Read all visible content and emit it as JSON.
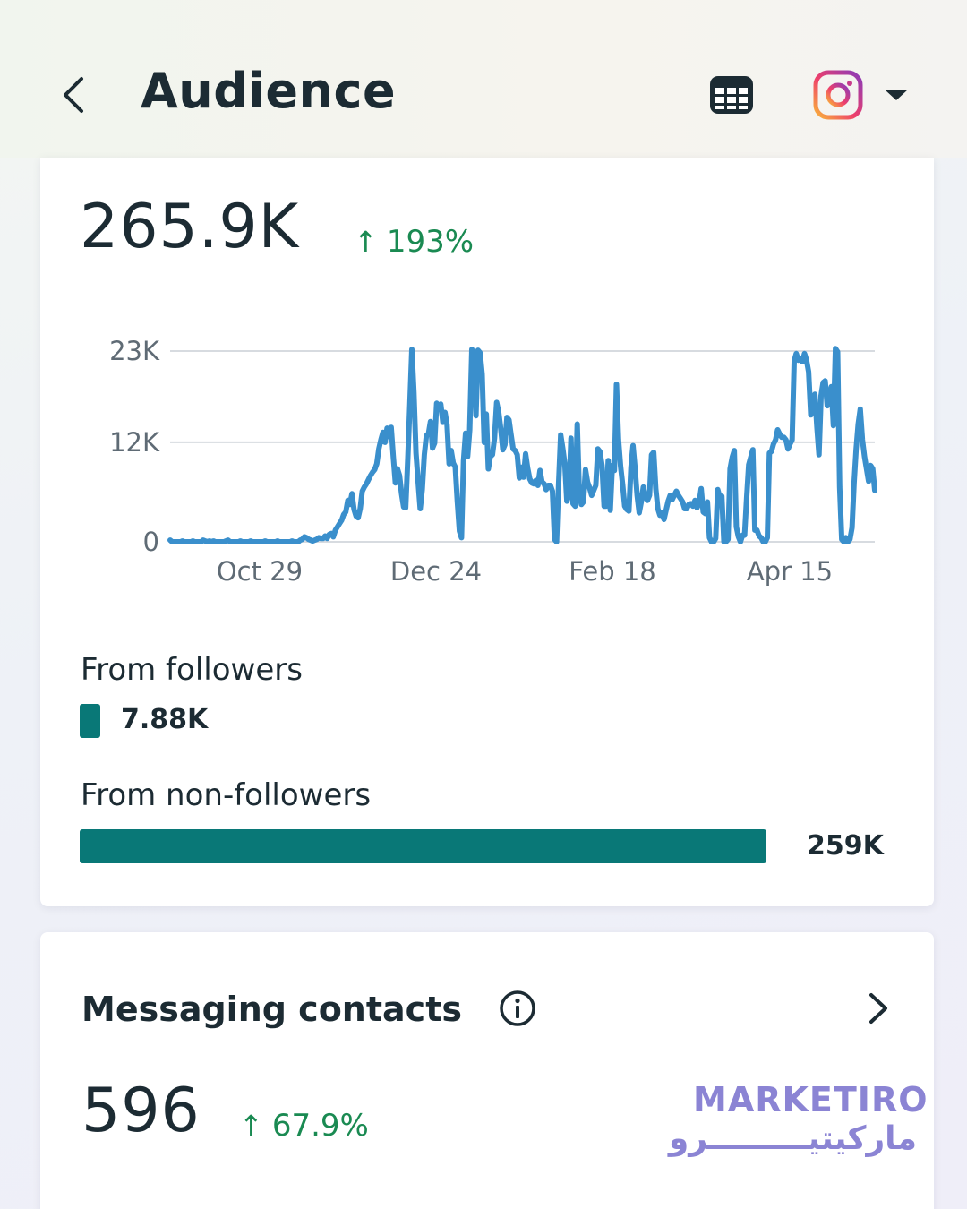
{
  "header": {
    "title": "Audience",
    "back_icon": "chevron-left-icon",
    "table_icon": "table-icon",
    "account_icon": "instagram-icon",
    "dropdown_icon": "caret-down-icon"
  },
  "reach": {
    "value": "265.9K",
    "delta_arrow": "↑",
    "delta": "193%",
    "chart_data": {
      "type": "line",
      "x_tick_labels": [
        "Oct 29",
        "Dec 24",
        "Feb 18",
        "Apr 15"
      ],
      "y_tick_labels": [
        "0",
        "12K",
        "23K"
      ],
      "y_ticks": [
        0,
        12000,
        23000
      ],
      "ylim": [
        0,
        23000
      ],
      "grid": true,
      "color": "#3a8fcc",
      "series": [
        {
          "values": [
            200,
            0,
            0,
            0,
            0,
            0,
            100,
            0,
            0,
            0,
            0,
            100,
            0,
            0,
            0,
            0,
            200,
            100,
            0,
            100,
            0,
            100,
            0,
            0,
            0,
            0,
            0,
            100,
            200,
            0,
            0,
            0,
            0,
            0,
            100,
            0,
            0,
            0,
            0,
            100,
            0,
            0,
            0,
            0,
            0,
            0,
            100,
            0,
            0,
            0,
            0,
            0,
            100,
            0,
            0,
            0,
            0,
            0,
            0,
            100,
            0,
            0,
            0,
            200,
            300,
            600,
            500,
            300,
            200,
            100,
            200,
            300,
            500,
            400,
            400,
            700,
            400,
            900,
            1000,
            600,
            1400,
            1800,
            2200,
            2600,
            3300,
            3600,
            5000,
            4500,
            5800,
            3900,
            3100,
            2900,
            4000,
            6100,
            6600,
            7000,
            7500,
            8000,
            8400,
            8700,
            9400,
            11200,
            12300,
            13200,
            12000,
            13700,
            12700,
            13800,
            10200,
            7100,
            8800,
            8000,
            5800,
            4200,
            4100,
            9900,
            16400,
            23200,
            18000,
            10700,
            7200,
            4000,
            6300,
            10500,
            12800,
            13000,
            14500,
            11300,
            11900,
            16700,
            16300,
            16600,
            14400,
            15600,
            14100,
            9400,
            11000,
            9500,
            9000,
            4800,
            1300,
            500,
            9800,
            13100,
            10300,
            13500,
            23200,
            22500,
            15200,
            23100,
            22800,
            20200,
            12000,
            15400,
            8800,
            10300,
            10500,
            12500,
            16800,
            15600,
            13600,
            11100,
            11700,
            15000,
            14700,
            12900,
            11200,
            11000,
            10500,
            7700,
            9000,
            7800,
            10600,
            8900,
            7600,
            7100,
            7000,
            7400,
            6800,
            8600,
            7200,
            7000,
            6300,
            6800,
            6800,
            6100,
            300,
            0,
            7000,
            12900,
            11300,
            9400,
            4900,
            5700,
            12500,
            4600,
            4300,
            14200,
            5900,
            4500,
            4800,
            8700,
            7200,
            6500,
            5600,
            6200,
            6800,
            11200,
            10900,
            9200,
            4300,
            4300,
            9800,
            3800,
            9200,
            8600,
            19000,
            12300,
            9100,
            6900,
            4300,
            3900,
            3700,
            9000,
            11600,
            8800,
            5600,
            3500,
            4800,
            6600,
            5400,
            5000,
            5600,
            10500,
            10800,
            6400,
            4000,
            3200,
            3500,
            2700,
            3800,
            4900,
            5600,
            5100,
            5600,
            6100,
            5600,
            5200,
            4800,
            4000,
            4000,
            4500,
            4600,
            4300,
            5000,
            4100,
            4700,
            6400,
            3600,
            3400,
            4800,
            500,
            0,
            0,
            400,
            6300,
            5400,
            5500,
            0,
            0,
            300,
            8800,
            10200,
            11000,
            1800,
            600,
            0,
            800,
            800,
            5300,
            9300,
            10200,
            11100,
            1400,
            1400,
            700,
            500,
            0,
            0,
            500,
            10700,
            10900,
            11800,
            12300,
            13500,
            13000,
            12600,
            12600,
            12300,
            11200,
            11800,
            12300,
            21800,
            22700,
            21900,
            22100,
            21700,
            22700,
            21900,
            20500,
            15300,
            16400,
            17800,
            13800,
            10500,
            17600,
            19200,
            19400,
            16400,
            17600,
            18700,
            14000,
            23300,
            22900,
            6600,
            300,
            0,
            500,
            0,
            300,
            1700,
            7100,
            11200,
            14200,
            16000,
            12300,
            10300,
            8800,
            7300,
            9200,
            8800,
            6200
          ]
        }
      ]
    },
    "breakdown": {
      "followers": {
        "label": "From followers",
        "value": "7.88K",
        "fraction": 0.0296
      },
      "non_followers": {
        "label": "From non-followers",
        "value": "259K",
        "fraction": 0.9704
      }
    }
  },
  "messaging": {
    "title": "Messaging contacts",
    "info_icon": "info-icon",
    "chevron_icon": "chevron-right-icon",
    "value": "596",
    "delta_arrow": "↑",
    "delta": "67.9%"
  },
  "watermark": {
    "latin": "MARKETIRO",
    "arabic": "ماركيتيـــــــــرو"
  },
  "colors": {
    "accent_green": "#1a8a52",
    "bar_teal": "#097877",
    "line_blue": "#3a8fcc",
    "watermark_purple": "#8b84d4"
  }
}
